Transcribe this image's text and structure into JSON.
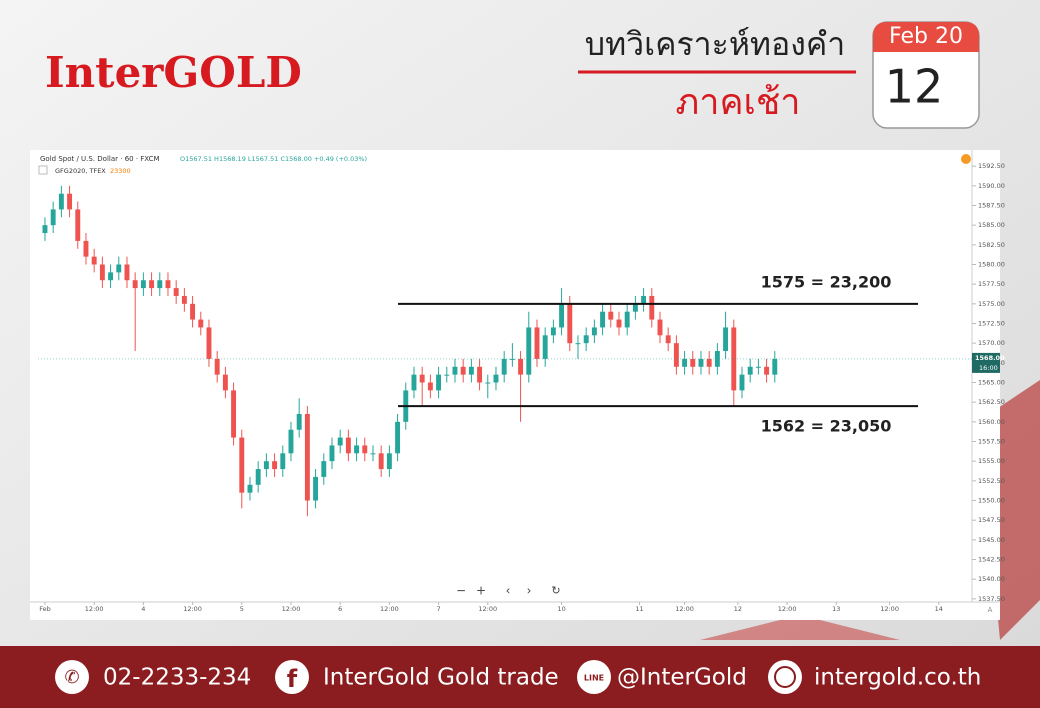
{
  "header": {
    "logo": "InterGOLD",
    "title": "บทวิเคราะห์ทองคำ",
    "subtitle": "ภาคเช้า",
    "calendar": {
      "month": "Feb 20",
      "day": "12"
    }
  },
  "chart_data": {
    "type": "candlestick",
    "title": "Gold Spot / U.S. Dollar · 60 · FXCM",
    "ohlc_text": "O1567.51 H1568.19 L1567.51 C1568.00 +0.49 (+0.03%)",
    "indicator": {
      "name": "GFG2020, TFEX",
      "value": "23300"
    },
    "last_price": {
      "value": 1568,
      "label": "1568.00",
      "time": "16:00"
    },
    "up_color": "#26a69a",
    "down_color": "#ef5350",
    "xlim": [
      -1.7,
      226.1
    ],
    "ylim": [
      1537.1,
      1594.3
    ],
    "xticks": [
      {
        "value": 0,
        "label": "Feb"
      },
      {
        "value": 12,
        "label": "12:00"
      },
      {
        "value": 24,
        "label": "4"
      },
      {
        "value": 36,
        "label": "12:00"
      },
      {
        "value": 48,
        "label": "5"
      },
      {
        "value": 60,
        "label": "12:00"
      },
      {
        "value": 72,
        "label": "6"
      },
      {
        "value": 84,
        "label": "12:00"
      },
      {
        "value": 96,
        "label": "7"
      },
      {
        "value": 108,
        "label": "12:00"
      },
      {
        "value": 126,
        "label": "10"
      },
      {
        "value": 145,
        "label": "11"
      },
      {
        "value": 156,
        "label": "12:00"
      },
      {
        "value": 169,
        "label": "12"
      },
      {
        "value": 181,
        "label": "12:00"
      },
      {
        "value": 193,
        "label": "13"
      },
      {
        "value": 206,
        "label": "12:00"
      },
      {
        "value": 218,
        "label": "14"
      }
    ],
    "yticks": [
      {
        "value": 1537.5,
        "label": "1537.50"
      },
      {
        "value": 1540,
        "label": "1540.00"
      },
      {
        "value": 1542.5,
        "label": "1542.50"
      },
      {
        "value": 1545,
        "label": "1545.00"
      },
      {
        "value": 1547.5,
        "label": "1547.50"
      },
      {
        "value": 1550,
        "label": "1550.00"
      },
      {
        "value": 1552.5,
        "label": "1552.50"
      },
      {
        "value": 1555,
        "label": "1555.00"
      },
      {
        "value": 1557.5,
        "label": "1557.50"
      },
      {
        "value": 1560,
        "label": "1560.00"
      },
      {
        "value": 1562.5,
        "label": "1562.50"
      },
      {
        "value": 1565,
        "label": "1565.00"
      },
      {
        "value": 1567.5,
        "label": "1567.50"
      },
      {
        "value": 1570,
        "label": "1570.00"
      },
      {
        "value": 1572.5,
        "label": "1572.50"
      },
      {
        "value": 1575,
        "label": "1575.00"
      },
      {
        "value": 1577.5,
        "label": "1577.50"
      },
      {
        "value": 1580,
        "label": "1580.00"
      },
      {
        "value": 1582.5,
        "label": "1582.50"
      },
      {
        "value": 1585,
        "label": "1585.00"
      },
      {
        "value": 1587.5,
        "label": "1587.50"
      },
      {
        "value": 1590,
        "label": "1590.00"
      },
      {
        "value": 1592.5,
        "label": "1592.50"
      }
    ],
    "levels": [
      {
        "value": 1575,
        "label": "1575 = 23,200"
      },
      {
        "value": 1562,
        "label": "1562 = 23,050"
      }
    ],
    "x": [
      0,
      2,
      4,
      6,
      8,
      10,
      12,
      14,
      16,
      18,
      20,
      22,
      24,
      26,
      28,
      30,
      32,
      34,
      36,
      38,
      40,
      42,
      44,
      46,
      48,
      50,
      52,
      54,
      56,
      58,
      60,
      62,
      64,
      66,
      68,
      70,
      72,
      74,
      76,
      78,
      80,
      82,
      84,
      86,
      88,
      90,
      92,
      94,
      96,
      98,
      100,
      102,
      104,
      106,
      108,
      110,
      112,
      114,
      116,
      118,
      120,
      122,
      124,
      126,
      128,
      130,
      132,
      134,
      136,
      138,
      140,
      142,
      144,
      146,
      148,
      150,
      152,
      154,
      156,
      158,
      160,
      162,
      164,
      166,
      168,
      170,
      172,
      174,
      176,
      178
    ],
    "open": [
      1584,
      1585,
      1587,
      1589,
      1587,
      1583,
      1581,
      1580,
      1578,
      1579,
      1580,
      1578,
      1577,
      1578,
      1577,
      1578,
      1577,
      1576,
      1575,
      1573,
      1572,
      1568,
      1566,
      1564,
      1558,
      1551,
      1552,
      1554,
      1555,
      1554,
      1556,
      1559,
      1561,
      1550,
      1553,
      1555,
      1557,
      1558,
      1556,
      1557,
      1556,
      1556,
      1554,
      1556,
      1560,
      1564,
      1566,
      1565,
      1564,
      1566,
      1566,
      1567,
      1566,
      1567,
      1565,
      1565,
      1566,
      1568,
      1568,
      1566,
      1572,
      1568,
      1571,
      1572,
      1575,
      1570,
      1570,
      1571,
      1572,
      1574,
      1573,
      1572,
      1574,
      1575,
      1576,
      1573,
      1571,
      1570,
      1567,
      1568,
      1567,
      1568,
      1567,
      1569,
      1572,
      1564,
      1566,
      1567,
      1567,
      1566
    ],
    "high": [
      1586,
      1588,
      1590,
      1590,
      1588,
      1584,
      1582,
      1581,
      1580,
      1581,
      1581,
      1579,
      1579,
      1579,
      1579,
      1579,
      1578,
      1577,
      1576,
      1574,
      1573,
      1569,
      1567,
      1565,
      1559,
      1553,
      1555,
      1556,
      1556,
      1557,
      1560,
      1563,
      1562,
      1554,
      1556,
      1558,
      1559,
      1559,
      1558,
      1558,
      1557,
      1557,
      1557,
      1561,
      1565,
      1567,
      1567,
      1566,
      1567,
      1567,
      1568,
      1568,
      1568,
      1568,
      1566,
      1567,
      1569,
      1570,
      1569,
      1574,
      1573,
      1572,
      1573,
      1577,
      1576,
      1571,
      1572,
      1573,
      1575,
      1575,
      1574,
      1575,
      1576,
      1577,
      1577,
      1574,
      1572,
      1571,
      1569,
      1569,
      1569,
      1569,
      1570,
      1574,
      1573,
      1567,
      1568,
      1568,
      1568,
      1569
    ],
    "low": [
      1583,
      1584,
      1586,
      1586,
      1582,
      1580,
      1579,
      1577,
      1577,
      1578,
      1577,
      1569,
      1576,
      1576,
      1576,
      1576,
      1575,
      1574,
      1572,
      1571,
      1567,
      1565,
      1563,
      1557,
      1549,
      1550,
      1551,
      1553,
      1553,
      1553,
      1555,
      1558,
      1548,
      1549,
      1552,
      1554,
      1556,
      1555,
      1555,
      1555,
      1555,
      1553,
      1553,
      1555,
      1559,
      1563,
      1562,
      1563,
      1563,
      1565,
      1565,
      1565,
      1565,
      1564,
      1563,
      1564,
      1565,
      1567,
      1560,
      1565,
      1567,
      1567,
      1570,
      1571,
      1569,
      1568,
      1569,
      1570,
      1571,
      1572,
      1571,
      1571,
      1573,
      1574,
      1572,
      1570,
      1569,
      1566,
      1566,
      1566,
      1566,
      1566,
      1566,
      1568,
      1562,
      1563,
      1565,
      1566,
      1565,
      1565
    ],
    "close": [
      1585,
      1587,
      1589,
      1587,
      1583,
      1581,
      1580,
      1578,
      1579,
      1580,
      1578,
      1577,
      1578,
      1577,
      1578,
      1577,
      1576,
      1575,
      1573,
      1572,
      1568,
      1566,
      1564,
      1558,
      1551,
      1552,
      1554,
      1555,
      1554,
      1556,
      1559,
      1561,
      1550,
      1553,
      1555,
      1557,
      1558,
      1556,
      1557,
      1556,
      1556,
      1554,
      1556,
      1560,
      1564,
      1566,
      1565,
      1564,
      1566,
      1566,
      1567,
      1566,
      1567,
      1565,
      1565,
      1566,
      1568,
      1568,
      1566,
      1572,
      1568,
      1571,
      1572,
      1575,
      1570,
      1570,
      1571,
      1572,
      1574,
      1573,
      1572,
      1574,
      1575,
      1576,
      1573,
      1571,
      1570,
      1567,
      1568,
      1567,
      1568,
      1567,
      1569,
      1572,
      1564,
      1566,
      1567,
      1567,
      1566,
      1568
    ]
  },
  "footer": {
    "phone": "02-2233-234",
    "facebook": "InterGold Gold trade",
    "line": "@InterGold",
    "website": "intergold.co.th"
  }
}
